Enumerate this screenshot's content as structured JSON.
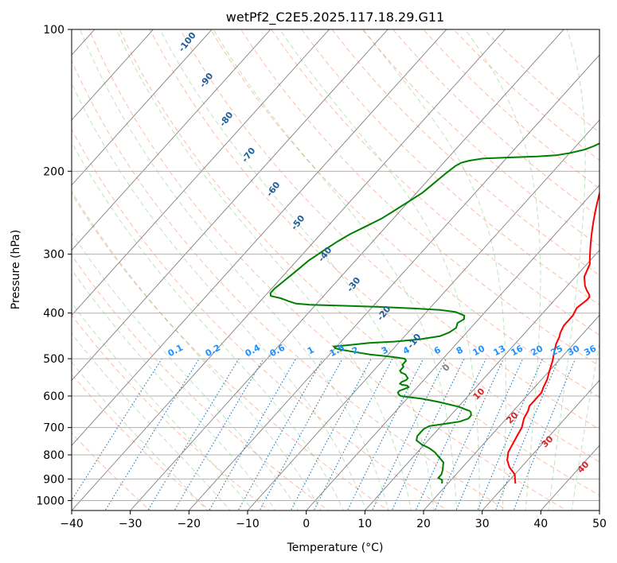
{
  "chart_data": {
    "type": "line",
    "title": "wetPf2_C2E5.2025.117.18.29.G11",
    "xlabel": "Temperature (°C)",
    "ylabel": "Pressure (hPa)",
    "xlim": [
      -40,
      50
    ],
    "ylim": [
      1050,
      100
    ],
    "yscale": "log",
    "x_ticks": [
      -40,
      -30,
      -20,
      -10,
      0,
      10,
      20,
      30,
      40,
      50
    ],
    "x_tick_labels": [
      "−40",
      "−30",
      "−20",
      "−10",
      "0",
      "10",
      "20",
      "30",
      "40",
      "50"
    ],
    "y_ticks": [
      1000,
      900,
      800,
      700,
      600,
      500,
      400,
      300,
      200,
      100
    ],
    "y_tick_labels": [
      "1000",
      "900",
      "800",
      "700",
      "600",
      "500",
      "400",
      "300",
      "200",
      "100"
    ],
    "grid": true,
    "series": [
      {
        "color": "#ff0000",
        "points": [
          [
            31.5,
            920
          ],
          [
            30,
            880
          ],
          [
            28,
            850
          ],
          [
            26.5,
            820
          ],
          [
            25.5,
            790
          ],
          [
            25,
            760
          ],
          [
            24.5,
            730
          ],
          [
            24,
            700
          ],
          [
            23,
            670
          ],
          [
            22.5,
            645
          ],
          [
            22,
            630
          ],
          [
            22,
            615
          ],
          [
            22,
            600
          ],
          [
            22,
            590
          ],
          [
            21.5,
            575
          ],
          [
            21,
            555
          ],
          [
            20,
            530
          ],
          [
            19,
            505
          ],
          [
            18,
            485
          ],
          [
            17,
            465
          ],
          [
            16.5,
            450
          ],
          [
            16,
            440
          ],
          [
            15.5,
            425
          ],
          [
            15.5,
            405
          ],
          [
            15,
            390
          ],
          [
            15.5,
            375
          ],
          [
            15.5,
            370
          ],
          [
            15,
            365
          ],
          [
            14,
            358
          ],
          [
            13,
            350
          ],
          [
            12.5,
            345
          ],
          [
            11.5,
            335
          ],
          [
            11,
            325
          ],
          [
            10.5,
            315
          ],
          [
            9.5,
            305
          ],
          [
            8.5,
            295
          ],
          [
            7.5,
            285
          ],
          [
            6.5,
            275
          ],
          [
            5.5,
            265
          ],
          [
            4.5,
            255
          ],
          [
            3.5,
            245
          ],
          [
            2.5,
            235
          ],
          [
            1.5,
            225
          ],
          [
            0.5,
            215
          ],
          [
            -0.5,
            205
          ],
          [
            -1.5,
            195
          ],
          [
            -2.5,
            185
          ],
          [
            -3.5,
            175
          ],
          [
            -4.5,
            165
          ],
          [
            -5,
            155
          ],
          [
            -5.5,
            148
          ],
          [
            -6,
            140
          ],
          [
            -6.5,
            130
          ],
          [
            -7,
            120
          ],
          [
            -7.5,
            110
          ],
          [
            -8,
            100
          ]
        ]
      },
      {
        "color": "#008000",
        "points": [
          [
            19,
            920
          ],
          [
            18.5,
            905
          ],
          [
            17.5,
            895
          ],
          [
            17.5,
            880
          ],
          [
            17,
            860
          ],
          [
            16.5,
            845
          ],
          [
            16,
            830
          ],
          [
            14.5,
            810
          ],
          [
            13,
            790
          ],
          [
            11.5,
            775
          ],
          [
            9.5,
            760
          ],
          [
            8,
            745
          ],
          [
            7.5,
            730
          ],
          [
            7.5,
            715
          ],
          [
            7.5,
            705
          ],
          [
            8,
            695
          ],
          [
            9.5,
            690
          ],
          [
            11,
            685
          ],
          [
            12.5,
            680
          ],
          [
            13.5,
            670
          ],
          [
            13.5,
            660
          ],
          [
            13,
            650
          ],
          [
            12.5,
            645
          ],
          [
            11.5,
            640
          ],
          [
            10,
            632
          ],
          [
            8,
            625
          ],
          [
            6,
            618
          ],
          [
            4,
            612
          ],
          [
            2.5,
            608
          ],
          [
            0.5,
            604
          ],
          [
            -1.5,
            600
          ],
          [
            -2,
            596
          ],
          [
            -2.5,
            590
          ],
          [
            -2.5,
            585
          ],
          [
            -2,
            580
          ],
          [
            -1.5,
            575
          ],
          [
            -2,
            570
          ],
          [
            -3,
            568
          ],
          [
            -3.5,
            565
          ],
          [
            -3.5,
            560
          ],
          [
            -3,
            555
          ],
          [
            -3,
            550
          ],
          [
            -3.5,
            545
          ],
          [
            -4,
            540
          ],
          [
            -5,
            535
          ],
          [
            -5.5,
            530
          ],
          [
            -5.5,
            525
          ],
          [
            -5.5,
            520
          ],
          [
            -6,
            515
          ],
          [
            -6,
            505
          ],
          [
            -6.5,
            500
          ],
          [
            -8,
            497
          ],
          [
            -10,
            494
          ],
          [
            -13,
            490
          ],
          [
            -15,
            486
          ],
          [
            -17,
            482
          ],
          [
            -19,
            478
          ],
          [
            -20,
            475
          ],
          [
            -20.5,
            471
          ],
          [
            -19,
            469
          ],
          [
            -17,
            466
          ],
          [
            -15,
            463
          ],
          [
            -11,
            460
          ],
          [
            -7,
            455
          ],
          [
            -4,
            448
          ],
          [
            -3,
            440
          ],
          [
            -2.5,
            430
          ],
          [
            -3,
            420
          ],
          [
            -2.5,
            412
          ],
          [
            -3,
            405
          ],
          [
            -5,
            398
          ],
          [
            -8,
            394
          ],
          [
            -13,
            391
          ],
          [
            -19,
            388
          ],
          [
            -25,
            386
          ],
          [
            -31,
            384
          ],
          [
            -33.5,
            382
          ],
          [
            -35,
            378
          ],
          [
            -37,
            372
          ],
          [
            -39,
            368
          ],
          [
            -39.5,
            363
          ],
          [
            -39.5,
            355
          ],
          [
            -39,
            340
          ],
          [
            -38.5,
            325
          ],
          [
            -38,
            310
          ],
          [
            -37,
            295
          ],
          [
            -36,
            282
          ],
          [
            -35,
            272
          ],
          [
            -33.5,
            262
          ],
          [
            -32,
            252
          ],
          [
            -31,
            242
          ],
          [
            -30,
            232
          ],
          [
            -29,
            222
          ],
          [
            -28.5,
            212
          ],
          [
            -28,
            202
          ],
          [
            -27.5,
            195
          ],
          [
            -27,
            192
          ],
          [
            -26,
            190
          ],
          [
            -24,
            188
          ],
          [
            -20,
            187
          ],
          [
            -15,
            186
          ],
          [
            -12,
            185
          ],
          [
            -10,
            183
          ],
          [
            -8,
            180
          ],
          [
            -7,
            177
          ],
          [
            -6,
            173
          ],
          [
            -5.5,
            168
          ],
          [
            -5,
            163
          ],
          [
            -4.5,
            158
          ],
          [
            -4,
            153
          ],
          [
            -3,
            148
          ],
          [
            -2,
            143
          ],
          [
            -1.5,
            138
          ],
          [
            -1.5,
            133
          ],
          [
            -1.5,
            128
          ],
          [
            -1.5,
            123
          ],
          [
            -1,
            118
          ],
          [
            -0.5,
            113
          ],
          [
            -0.5,
            108
          ],
          [
            -0.5,
            104
          ],
          [
            -0.5,
            100
          ]
        ]
      }
    ],
    "dry_adiabat_labels": [
      "-100",
      "-90",
      "-80",
      "-70",
      "-60",
      "-50",
      "-40",
      "-30",
      "-20",
      "-10"
    ],
    "moist_adiabat_labels": [
      "0",
      "10",
      "20",
      "30",
      "40"
    ],
    "mixing_ratio_labels": [
      "0.1",
      "0.2",
      "0.4",
      "0.6",
      "1",
      "1.5",
      "2",
      "3",
      "4",
      "6",
      "8",
      "10",
      "13",
      "16",
      "20",
      "25",
      "30",
      "36"
    ],
    "colors": {
      "temperature": "#ff0000",
      "dewpoint": "#008000",
      "isotherm": "#808080",
      "isobar": "#b0b0b0",
      "dry_adiabat": "#ff6a3a",
      "moist_adiabat": "#2ca02c",
      "mixing_ratio": "#1f77b4",
      "dry_label": "#1f5f9a",
      "moist_label": "#d62728",
      "mr_label": "#1e90ff"
    }
  }
}
